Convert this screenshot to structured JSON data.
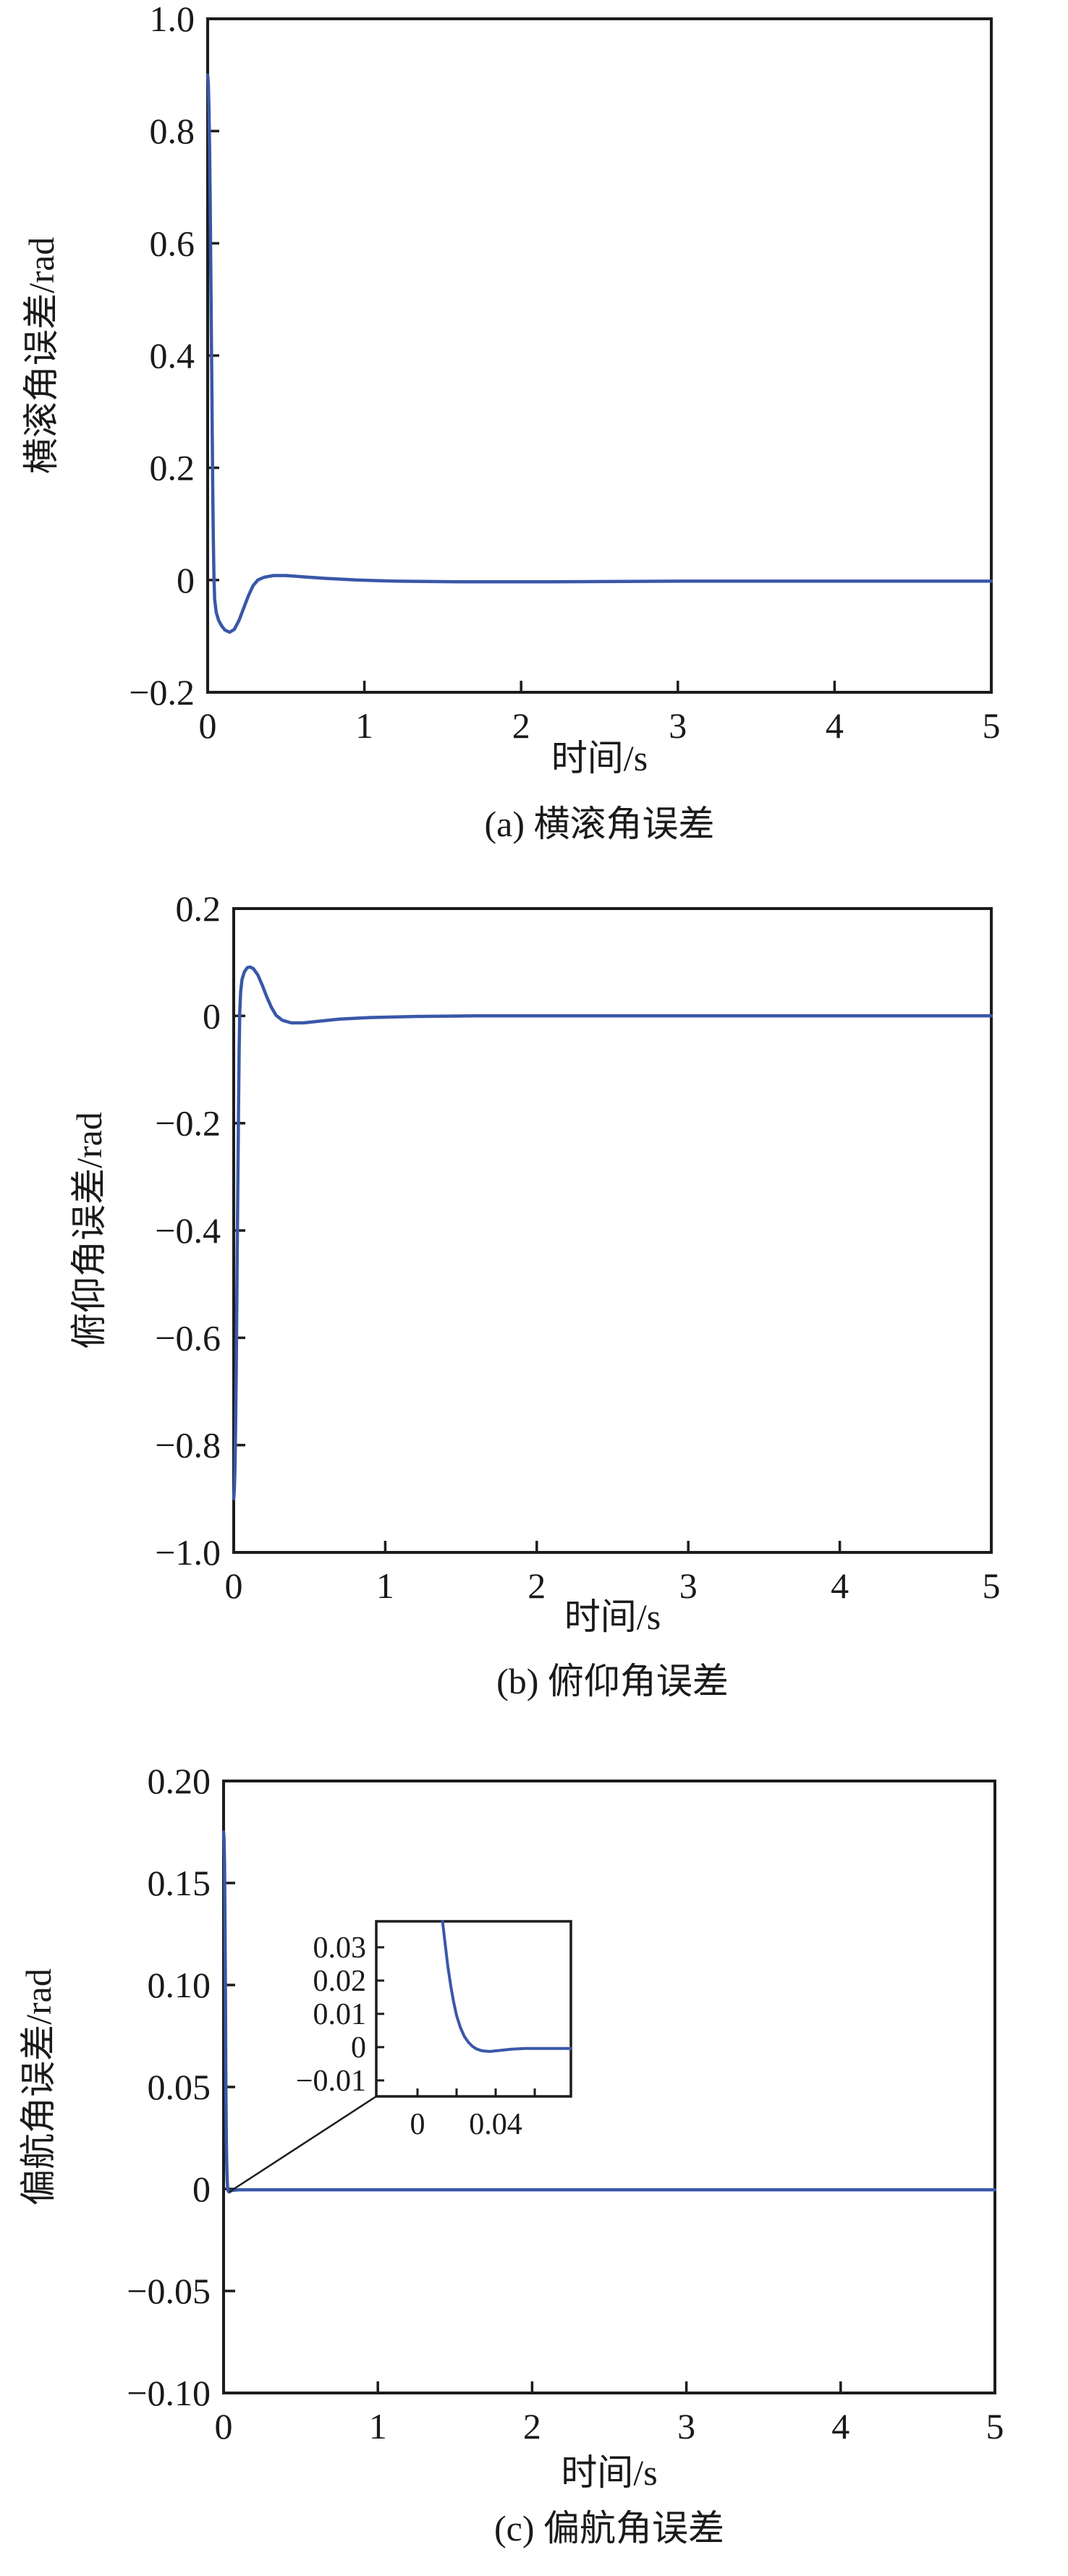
{
  "figure": {
    "background": "#ffffff",
    "description_note": ""
  },
  "colors": {
    "curve": "#3a57a8",
    "axis": "#1c1c1c",
    "text": "#1a1a1a"
  },
  "chart_data": [
    {
      "type": "line",
      "title": "(a) 横滚角误差",
      "xlabel": "时间/s",
      "ylabel": "横滚角误差/rad",
      "xlim": [
        0,
        5
      ],
      "ylim": [
        -0.2,
        1.0
      ],
      "grid": false,
      "legend": null,
      "xtick_values": [
        0,
        1,
        2,
        3,
        4,
        5
      ],
      "xtick_labels": [
        "0",
        "1",
        "2",
        "3",
        "4",
        "5"
      ],
      "ytick_values": [
        1.0,
        0.8,
        0.6,
        0.4,
        0.2,
        0,
        -0.2
      ],
      "ytick_labels": [
        "1.0",
        "0.8",
        "0.6",
        "0.4",
        "0.2",
        "0",
        "−0.2"
      ],
      "series": [
        {
          "name": "roll-angle-error",
          "color": "#3a57a8",
          "points": [
            [
              0,
              0.9
            ],
            [
              0.004,
              0.885
            ],
            [
              0.008,
              0.845
            ],
            [
              0.012,
              0.775
            ],
            [
              0.016,
              0.675
            ],
            [
              0.02,
              0.555
            ],
            [
              0.024,
              0.425
            ],
            [
              0.028,
              0.295
            ],
            [
              0.032,
              0.175
            ],
            [
              0.036,
              0.075
            ],
            [
              0.04,
              0.005
            ],
            [
              0.045,
              -0.035
            ],
            [
              0.055,
              -0.058
            ],
            [
              0.07,
              -0.072
            ],
            [
              0.09,
              -0.082
            ],
            [
              0.11,
              -0.089
            ],
            [
              0.14,
              -0.093
            ],
            [
              0.17,
              -0.088
            ],
            [
              0.2,
              -0.072
            ],
            [
              0.23,
              -0.05
            ],
            [
              0.26,
              -0.028
            ],
            [
              0.29,
              -0.01
            ],
            [
              0.32,
              0.0
            ],
            [
              0.36,
              0.005
            ],
            [
              0.42,
              0.008
            ],
            [
              0.5,
              0.008
            ],
            [
              0.6,
              0.006
            ],
            [
              0.75,
              0.003
            ],
            [
              0.95,
              0.0
            ],
            [
              1.2,
              -0.002
            ],
            [
              1.6,
              -0.003
            ],
            [
              2.2,
              -0.003
            ],
            [
              3.0,
              -0.002
            ],
            [
              4.0,
              -0.002
            ],
            [
              5.0,
              -0.002
            ]
          ]
        }
      ]
    },
    {
      "type": "line",
      "title": "(b) 俯仰角误差",
      "xlabel": "时间/s",
      "ylabel": "俯仰角误差/rad",
      "xlim": [
        0,
        5
      ],
      "ylim": [
        -1.0,
        0.2
      ],
      "grid": false,
      "legend": null,
      "xtick_values": [
        0,
        1,
        2,
        3,
        4,
        5
      ],
      "xtick_labels": [
        "0",
        "1",
        "2",
        "3",
        "4",
        "5"
      ],
      "ytick_values": [
        0.2,
        0,
        -0.2,
        -0.4,
        -0.6,
        -0.8,
        -1.0
      ],
      "ytick_labels": [
        "0.2",
        "0",
        "−0.2",
        "−0.4",
        "−0.6",
        "−0.8",
        "−1.0"
      ],
      "series": [
        {
          "name": "pitch-angle-error",
          "color": "#3a57a8",
          "points": [
            [
              0,
              -0.9
            ],
            [
              0.004,
              -0.885
            ],
            [
              0.008,
              -0.845
            ],
            [
              0.012,
              -0.775
            ],
            [
              0.016,
              -0.675
            ],
            [
              0.02,
              -0.55
            ],
            [
              0.024,
              -0.415
            ],
            [
              0.028,
              -0.285
            ],
            [
              0.032,
              -0.165
            ],
            [
              0.036,
              -0.065
            ],
            [
              0.04,
              0.01
            ],
            [
              0.046,
              0.045
            ],
            [
              0.055,
              0.068
            ],
            [
              0.07,
              0.082
            ],
            [
              0.09,
              0.09
            ],
            [
              0.11,
              0.091
            ],
            [
              0.13,
              0.088
            ],
            [
              0.16,
              0.076
            ],
            [
              0.19,
              0.056
            ],
            [
              0.22,
              0.034
            ],
            [
              0.25,
              0.015
            ],
            [
              0.28,
              0.001
            ],
            [
              0.32,
              -0.008
            ],
            [
              0.38,
              -0.013
            ],
            [
              0.46,
              -0.013
            ],
            [
              0.56,
              -0.01
            ],
            [
              0.7,
              -0.006
            ],
            [
              0.9,
              -0.003
            ],
            [
              1.2,
              -0.001
            ],
            [
              1.6,
              0.0
            ],
            [
              2.5,
              0.0
            ],
            [
              5.0,
              0.0
            ]
          ]
        }
      ]
    },
    {
      "type": "line",
      "title": "(c) 偏航角误差",
      "xlabel": "时间/s",
      "ylabel": "偏航角误差/rad",
      "xlim": [
        0,
        5
      ],
      "ylim": [
        -0.1,
        0.2
      ],
      "grid": false,
      "legend": null,
      "xtick_values": [
        0,
        1,
        2,
        3,
        4,
        5
      ],
      "xtick_labels": [
        "0",
        "1",
        "2",
        "3",
        "4",
        "5"
      ],
      "ytick_values": [
        0.2,
        0.15,
        0.1,
        0.05,
        0,
        -0.05,
        -0.1
      ],
      "ytick_labels": [
        "0.20",
        "0.15",
        "0.10",
        "0.05",
        "0",
        "−0.05",
        "−0.10"
      ],
      "series": [
        {
          "name": "yaw-angle-error",
          "color": "#3a57a8",
          "points": [
            [
              0,
              0.175
            ],
            [
              0.003,
              0.172
            ],
            [
              0.006,
              0.16
            ],
            [
              0.009,
              0.132
            ],
            [
              0.012,
              0.094
            ],
            [
              0.014,
              0.062
            ],
            [
              0.016,
              0.04
            ],
            [
              0.018,
              0.024
            ],
            [
              0.02,
              0.013
            ],
            [
              0.023,
              0.005
            ],
            [
              0.026,
              0.001
            ],
            [
              0.03,
              -0.001
            ],
            [
              0.036,
              -0.0015
            ],
            [
              0.045,
              -0.001
            ],
            [
              0.06,
              -0.0006
            ],
            [
              0.1,
              -0.0004
            ],
            [
              0.5,
              -0.0004
            ],
            [
              2.5,
              -0.0004
            ],
            [
              5.0,
              -0.0004
            ]
          ]
        }
      ],
      "inset": {
        "xlim": [
          -0.0211,
          0.0785
        ],
        "ylim": [
          -0.0148,
          0.0378
        ],
        "xtick_values": [
          0,
          0.02,
          0.04,
          0.06
        ],
        "xtick_labels": [
          "0",
          "",
          "0.04",
          ""
        ],
        "ytick_values": [
          0.03,
          0.02,
          0.01,
          0,
          -0.01
        ],
        "ytick_labels": [
          "0.03",
          "0.02",
          "0.01",
          "0",
          "−0.01"
        ],
        "series": [
          {
            "name": "yaw-angle-error-zoom",
            "color": "#3a57a8",
            "points": [
              [
                0.0128,
                0.0378
              ],
              [
                0.014,
                0.0318
              ],
              [
                0.0155,
                0.0245
              ],
              [
                0.017,
                0.0185
              ],
              [
                0.0185,
                0.0135
              ],
              [
                0.02,
                0.0095
              ],
              [
                0.022,
                0.0058
              ],
              [
                0.024,
                0.0032
              ],
              [
                0.026,
                0.0015
              ],
              [
                0.028,
                0.0003
              ],
              [
                0.03,
                -0.0005
              ],
              [
                0.033,
                -0.0011
              ],
              [
                0.037,
                -0.0013
              ],
              [
                0.042,
                -0.001
              ],
              [
                0.048,
                -0.0006
              ],
              [
                0.055,
                -0.0004
              ],
              [
                0.065,
                -0.0004
              ],
              [
                0.0785,
                -0.0004
              ]
            ]
          }
        ]
      }
    }
  ]
}
